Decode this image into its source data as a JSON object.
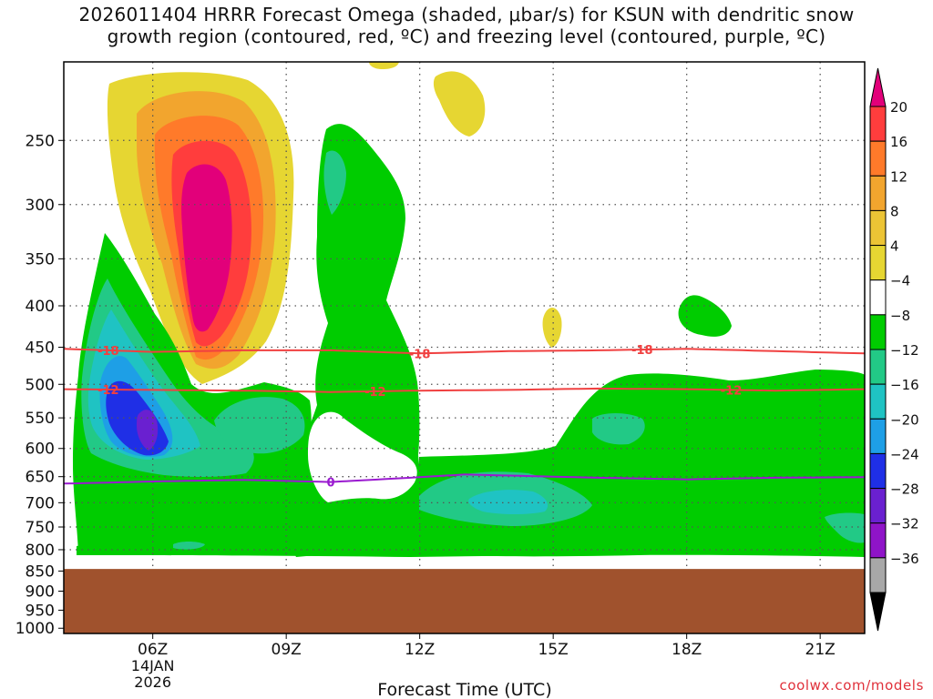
{
  "chart_data": {
    "type": "time-height contour cross-section",
    "title_line1": "2026011404 HRRR Forecast Omega (shaded, μbar/s) for KSUN with dendritic snow",
    "title_line2": "growth region (contoured, red, ºC) and freezing level (contoured, purple, ºC)",
    "xlabel": "Forecast Time (UTC)",
    "x_ticks": [
      {
        "hour": 6,
        "label": "06Z"
      },
      {
        "hour": 9,
        "label": "09Z"
      },
      {
        "hour": 12,
        "label": "12Z"
      },
      {
        "hour": 15,
        "label": "15Z"
      },
      {
        "hour": 18,
        "label": "18Z"
      },
      {
        "hour": 21,
        "label": "21Z"
      }
    ],
    "date_label": [
      "14JAN",
      "2026"
    ],
    "x_range_hours": [
      4,
      22
    ],
    "y_ticks_hpa": [
      250,
      300,
      350,
      400,
      450,
      500,
      550,
      600,
      650,
      700,
      750,
      800,
      850,
      900,
      950,
      1000
    ],
    "y_range_hpa": [
      200,
      1015
    ],
    "ground_top_hpa": 845,
    "contours": [
      {
        "name": "dgz-upper",
        "color": "#f04040",
        "label": "-18",
        "hours": [
          4,
          6,
          8,
          10,
          12,
          14,
          16,
          18,
          20,
          22
        ],
        "hpa": [
          452,
          456,
          454,
          454,
          458,
          455,
          454,
          452,
          455,
          458
        ],
        "label_hours": [
          5,
          12,
          17
        ]
      },
      {
        "name": "dgz-lower",
        "color": "#f04040",
        "label": "-12",
        "hours": [
          4,
          6,
          8,
          10,
          12,
          14,
          16,
          18,
          20,
          22
        ],
        "hpa": [
          507,
          508,
          509,
          511,
          509,
          508,
          506,
          507,
          509,
          507
        ],
        "label_hours": [
          5,
          11,
          19
        ]
      },
      {
        "name": "freezing-level",
        "color": "#9a1ad0",
        "label": "0",
        "hours": [
          4,
          6,
          8,
          10,
          12,
          13,
          14,
          16,
          18,
          20,
          22
        ],
        "hpa": [
          663,
          659,
          656,
          660,
          651,
          646,
          648,
          652,
          655,
          652,
          651
        ],
        "label_hours": [
          10
        ]
      }
    ],
    "colorbar": {
      "units": "μbar/s",
      "tick_labels": [
        "20",
        "16",
        "12",
        "8",
        "4",
        "−4",
        "−8",
        "−12",
        "−16",
        "−20",
        "−24",
        "−28",
        "−32",
        "−36"
      ],
      "colors": [
        "#e2007a",
        "#ff3d3d",
        "#ff7a2a",
        "#f2a52e",
        "#ecc435",
        "#e6d632",
        "#ffffff",
        "#00cc00",
        "#22c986",
        "#1fc3c3",
        "#1e9fe6",
        "#1f2fe6",
        "#6a20d0",
        "#8f14c8",
        "#a8a8a8",
        "#000000"
      ]
    },
    "omega_features": [
      {
        "name": "upper-ascent-dipole-max",
        "hour": 7.1,
        "hpa": 330,
        "value": 20
      },
      {
        "name": "lower-subsidence-min",
        "hour": 5.9,
        "hpa": 585,
        "value": -28
      }
    ]
  },
  "credit": "coolwx.com/models"
}
